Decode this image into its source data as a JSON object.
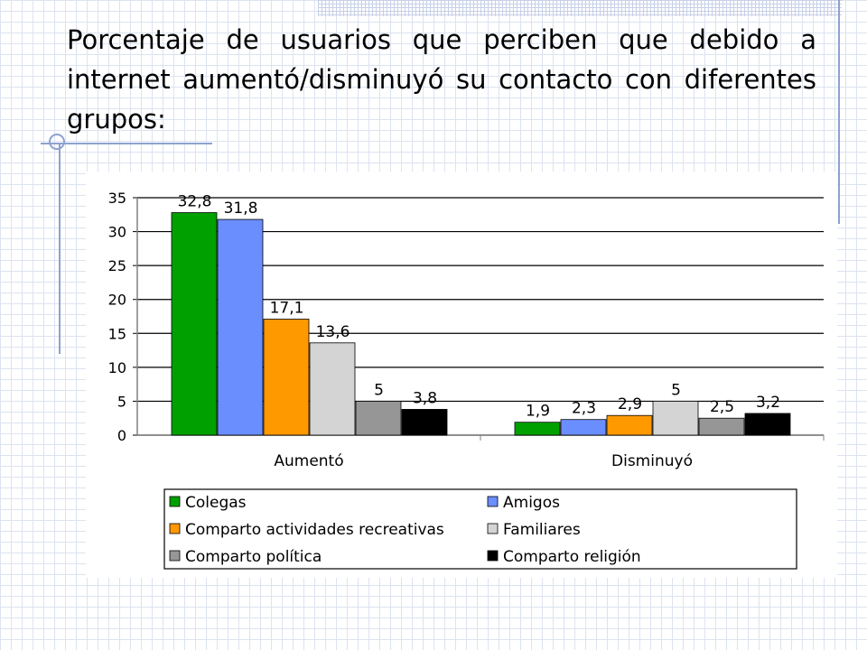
{
  "slide": {
    "title": "Porcentaje de usuarios que perciben que debido a internet aumentó/disminuyó su contacto con diferentes grupos:"
  },
  "colors": {
    "Colegas": "#00a000",
    "Amigos": "#6b8eff",
    "Comparto actividades recreativas": "#ff9900",
    "Familiares": "#d4d4d4",
    "Comparto política": "#969696",
    "Comparto religión": "#000000"
  },
  "chart_data": {
    "type": "bar",
    "categories": [
      "Aumentó",
      "Disminuyó"
    ],
    "series": [
      {
        "name": "Colegas",
        "values": [
          32.8,
          1.9
        ],
        "labels": [
          "32,8",
          "1,9"
        ]
      },
      {
        "name": "Amigos",
        "values": [
          31.8,
          2.3
        ],
        "labels": [
          "31,8",
          "2,3"
        ]
      },
      {
        "name": "Comparto actividades recreativas",
        "values": [
          17.1,
          2.9
        ],
        "labels": [
          "17,1",
          "2,9"
        ]
      },
      {
        "name": "Familiares",
        "values": [
          13.6,
          5
        ],
        "labels": [
          "13,6",
          "5"
        ]
      },
      {
        "name": "Comparto política",
        "values": [
          5,
          2.5
        ],
        "labels": [
          "5",
          "2,5"
        ]
      },
      {
        "name": "Comparto religión",
        "values": [
          3.8,
          3.2
        ],
        "labels": [
          "3,8",
          "3,2"
        ]
      }
    ],
    "ylim": [
      0,
      35
    ],
    "yticks": [
      "0",
      "5",
      "10",
      "15",
      "20",
      "25",
      "30",
      "35"
    ],
    "grid": true,
    "legend_position": "bottom"
  }
}
